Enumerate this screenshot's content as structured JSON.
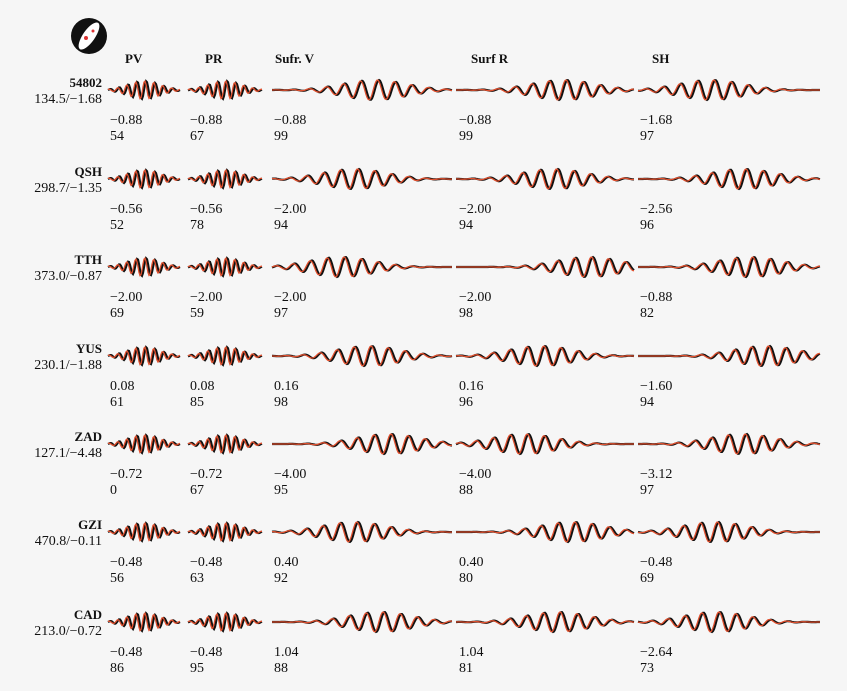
{
  "figure": {
    "headers": [
      "PV",
      "PR",
      "Sufr. V",
      "Surf R",
      "SH"
    ],
    "rows": [
      {
        "station": "54802",
        "distance": "134.5/−1.68",
        "cells": [
          [
            "−0.88",
            "54"
          ],
          [
            "−0.88",
            "67"
          ],
          [
            "−0.88",
            "99"
          ],
          [
            "−0.88",
            "99"
          ],
          [
            "−1.68",
            "97"
          ]
        ]
      },
      {
        "station": "QSH",
        "distance": "298.7/−1.35",
        "cells": [
          [
            "−0.56",
            "52"
          ],
          [
            "−0.56",
            "78"
          ],
          [
            "−2.00",
            "94"
          ],
          [
            "−2.00",
            "94"
          ],
          [
            "−2.56",
            "96"
          ]
        ]
      },
      {
        "station": "TTH",
        "distance": "373.0/−0.87",
        "cells": [
          [
            "−2.00",
            "69"
          ],
          [
            "−2.00",
            "59"
          ],
          [
            "−2.00",
            "97"
          ],
          [
            "−2.00",
            "98"
          ],
          [
            "−0.88",
            "82"
          ]
        ]
      },
      {
        "station": "YUS",
        "distance": "230.1/−1.88",
        "cells": [
          [
            "0.08",
            "61"
          ],
          [
            "0.08",
            "85"
          ],
          [
            "0.16",
            "98"
          ],
          [
            "0.16",
            "96"
          ],
          [
            "−1.60",
            "94"
          ]
        ]
      },
      {
        "station": "ZAD",
        "distance": "127.1/−4.48",
        "cells": [
          [
            "−0.72",
            "0"
          ],
          [
            "−0.72",
            "67"
          ],
          [
            "−4.00",
            "95"
          ],
          [
            "−4.00",
            "88"
          ],
          [
            "−3.12",
            "97"
          ]
        ]
      },
      {
        "station": "GZI",
        "distance": "470.8/−0.11",
        "cells": [
          [
            "−0.48",
            "56"
          ],
          [
            "−0.48",
            "63"
          ],
          [
            "0.40",
            "92"
          ],
          [
            "0.40",
            "80"
          ],
          [
            "−0.48",
            "69"
          ]
        ]
      },
      {
        "station": "CAD",
        "distance": "213.0/−0.72",
        "cells": [
          [
            "−0.48",
            "86"
          ],
          [
            "−0.48",
            "95"
          ],
          [
            "1.04",
            "88"
          ],
          [
            "1.04",
            "81"
          ],
          [
            "−2.64",
            "73"
          ]
        ]
      }
    ]
  }
}
